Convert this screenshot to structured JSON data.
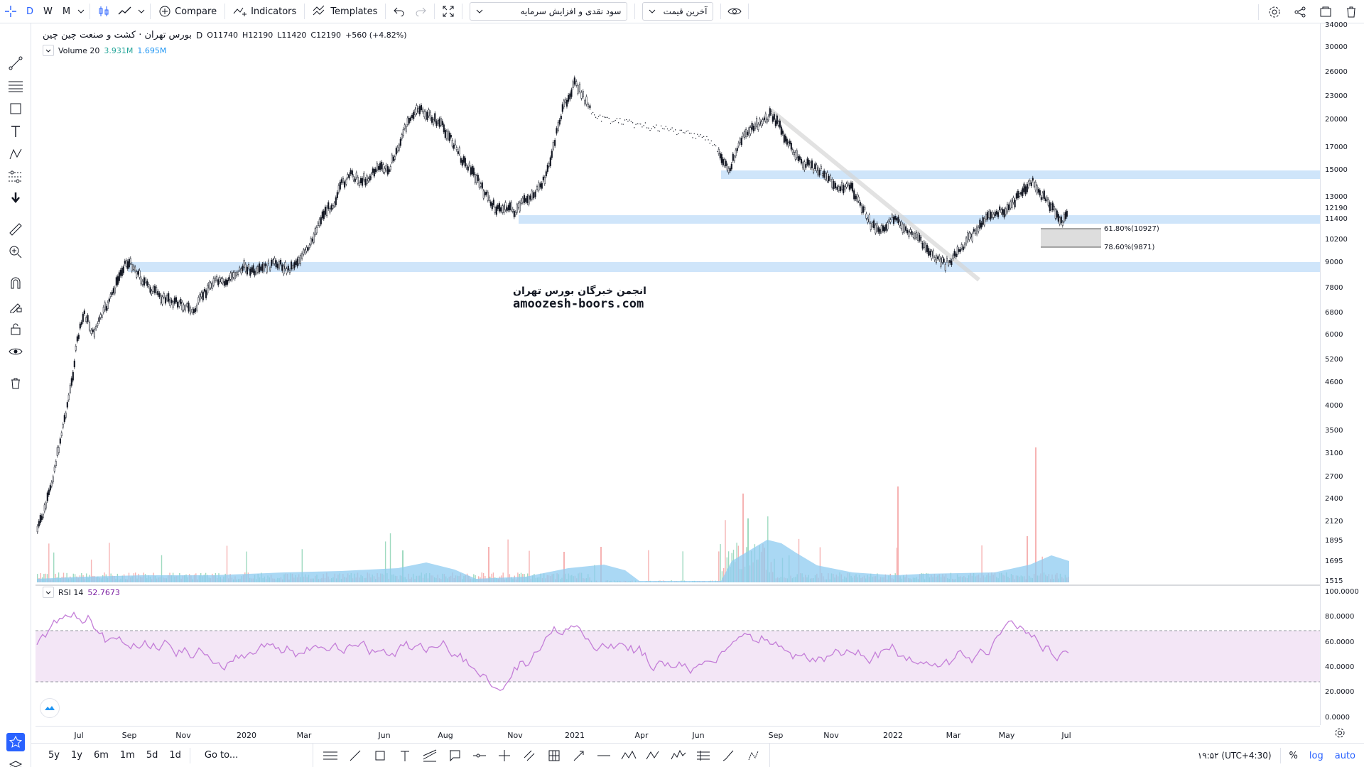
{
  "toolbar": {
    "intervals": [
      "D",
      "W",
      "M"
    ],
    "active_interval": "D",
    "compare_label": "Compare",
    "indicators_label": "Indicators",
    "templates_label": "Templates",
    "layout_dropdown_value": "سود نقدی و افزایش سرمایه",
    "price_source_dropdown_value": "آخرین قیمت"
  },
  "legend": {
    "symbol": "بورس تهران · کشت و صنعت چین چین",
    "interval": "D",
    "open_label": "O",
    "open": "11740",
    "high_label": "H",
    "high": "12190",
    "low_label": "L",
    "low": "11420",
    "close_label": "C",
    "close": "12190",
    "change": "+560 (+4.82%)",
    "volume_label": "Volume 20",
    "volume_value": "3.931M",
    "volume_ma": "1.695M",
    "rsi_label": "RSI 14",
    "rsi_value": "52.7673"
  },
  "price_axis": {
    "labels": [
      "34000",
      "30000",
      "26000",
      "23000",
      "20000",
      "17000",
      "15000",
      "13000",
      "12190",
      "11400",
      "10200",
      "9000",
      "7800",
      "6800",
      "6000",
      "5200",
      "4600",
      "4000",
      "3500",
      "3100",
      "2700",
      "2400",
      "2120",
      "1895",
      "1695",
      "1515"
    ],
    "current_price": "12190"
  },
  "rsi_axis": {
    "labels": [
      "100.0000",
      "80.0000",
      "60.0000",
      "40.0000",
      "20.0000",
      "0.0000"
    ]
  },
  "time_axis": {
    "labels": [
      "Jul",
      "Sep",
      "Nov",
      "2020",
      "Mar",
      "Jun",
      "Aug",
      "Nov",
      "2021",
      "Apr",
      "Jun",
      "Sep",
      "Nov",
      "2022",
      "Mar",
      "May",
      "Jul"
    ]
  },
  "fibonacci": {
    "level1": "61.80%(10927)",
    "level2": "78.60%(9871)"
  },
  "watermark": {
    "line1": "انجمن خبرگان بورس تهران",
    "line2": "amoozesh-boors.com"
  },
  "bottom_bar": {
    "ranges": [
      "5y",
      "1y",
      "6m",
      "1m",
      "5d",
      "1d"
    ],
    "goto_label": "Go to...",
    "clock": "۱۹:۵۲ (UTC+4:30)",
    "percent_label": "%",
    "log_label": "log",
    "auto_label": "auto"
  },
  "colors": {
    "accent": "#2962ff",
    "support_zone": "#cfe5fa",
    "rsi_line": "#c47ed8",
    "rsi_band": "#f3e6f6",
    "volume_up": "#9fdac0",
    "volume_down": "#f6b3b3",
    "volume_ma": "#8ecbf0"
  }
}
